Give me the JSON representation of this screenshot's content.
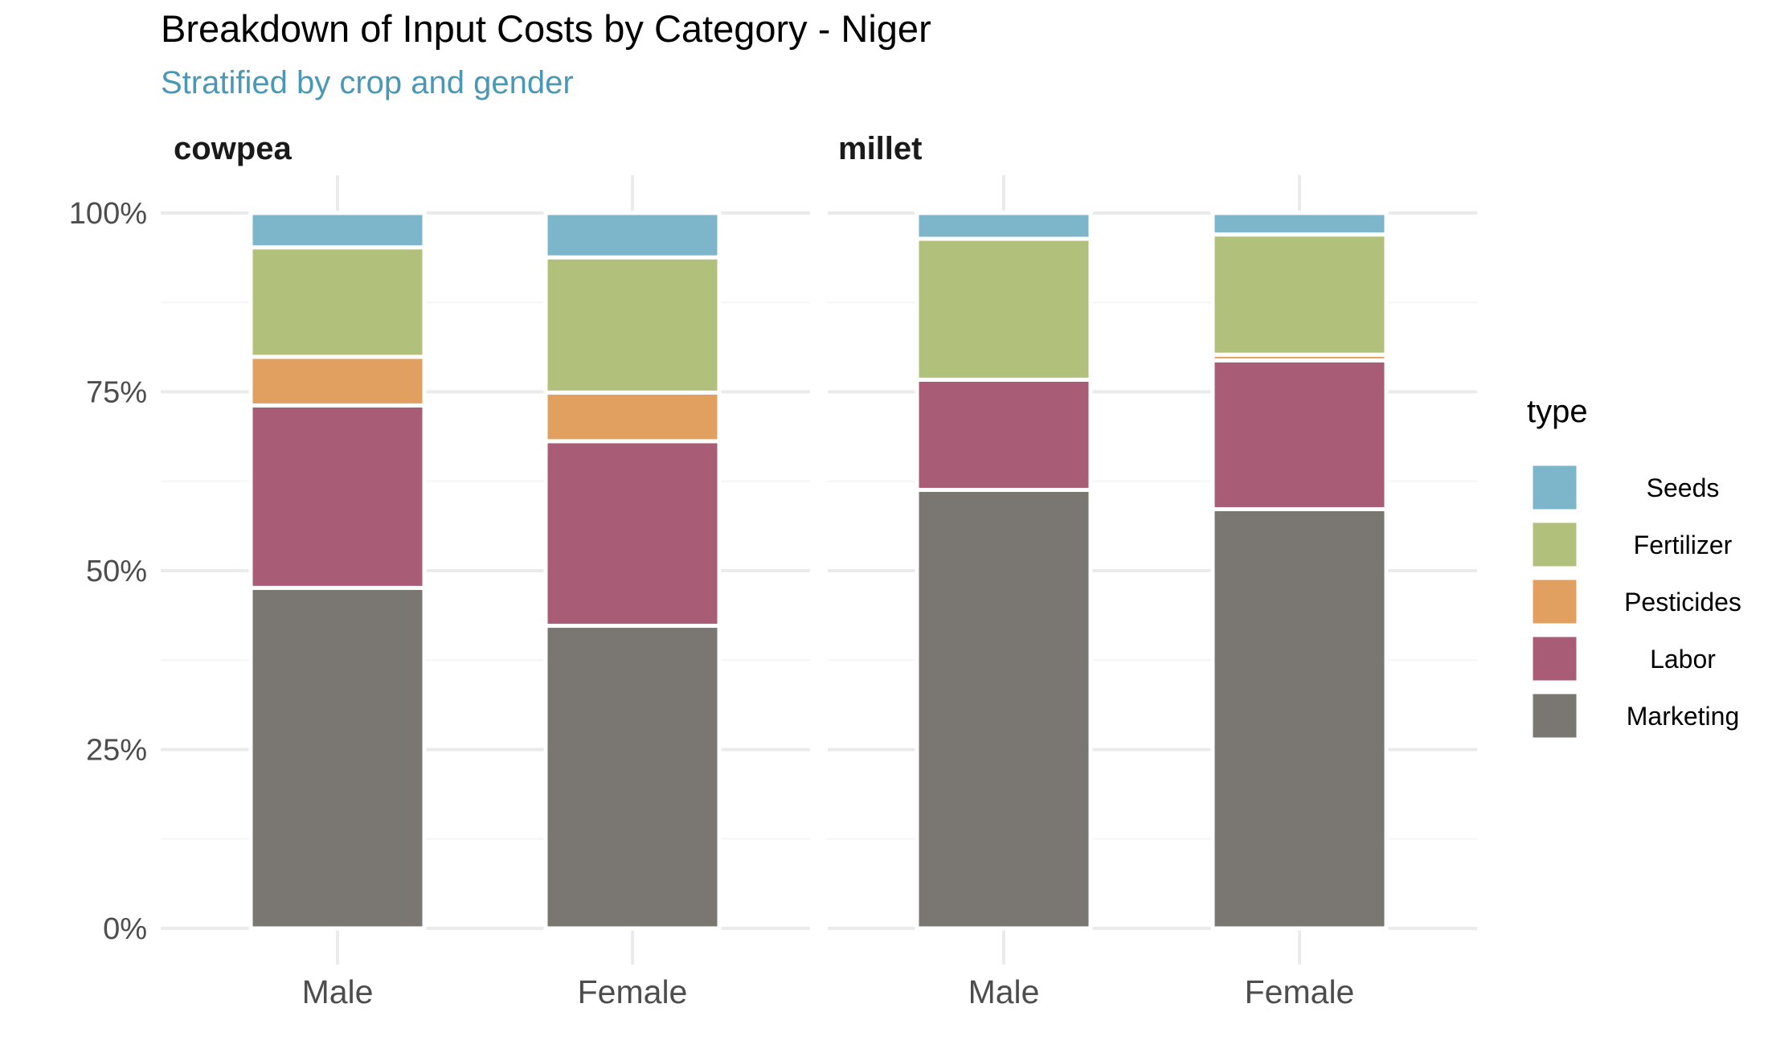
{
  "chart_data": {
    "type": "bar",
    "stacked": true,
    "normalized": true,
    "title": "Breakdown of Input Costs by Category - Niger",
    "subtitle": "Stratified by crop and gender",
    "ylim": [
      0,
      1
    ],
    "y_ticks": [
      "0%",
      "25%",
      "50%",
      "75%",
      "100%"
    ],
    "grid": true,
    "legend": {
      "title": "type",
      "placement": "right",
      "entries": [
        "Seeds",
        "Fertilizer",
        "Pesticides",
        "Labor",
        "Marketing"
      ]
    },
    "colors": {
      "Seeds": "#78b2c8",
      "Fertilizer": "#aebd76",
      "Pesticides": "#e09c5a",
      "Labor": "#a6556f",
      "Marketing": "#75716c"
    },
    "stack_order": [
      "Marketing",
      "Labor",
      "Pesticides",
      "Fertilizer",
      "Seeds"
    ],
    "facets": [
      {
        "name": "cowpea",
        "categories": [
          "Male",
          "Female"
        ],
        "series": [
          {
            "name": "Marketing",
            "values": [
              0.476,
              0.423
            ]
          },
          {
            "name": "Labor",
            "values": [
              0.255,
              0.258
            ]
          },
          {
            "name": "Pesticides",
            "values": [
              0.068,
              0.068
            ]
          },
          {
            "name": "Fertilizer",
            "values": [
              0.153,
              0.189
            ]
          },
          {
            "name": "Seeds",
            "values": [
              0.048,
              0.062
            ]
          }
        ]
      },
      {
        "name": "millet",
        "categories": [
          "Male",
          "Female"
        ],
        "series": [
          {
            "name": "Marketing",
            "values": [
              0.613,
              0.586
            ]
          },
          {
            "name": "Labor",
            "values": [
              0.154,
              0.208
            ]
          },
          {
            "name": "Pesticides",
            "values": [
              0.0,
              0.008
            ]
          },
          {
            "name": "Fertilizer",
            "values": [
              0.197,
              0.168
            ]
          },
          {
            "name": "Seeds",
            "values": [
              0.036,
              0.03
            ]
          }
        ]
      }
    ]
  },
  "theme": {
    "subtitle_color": "#4a98b6"
  }
}
